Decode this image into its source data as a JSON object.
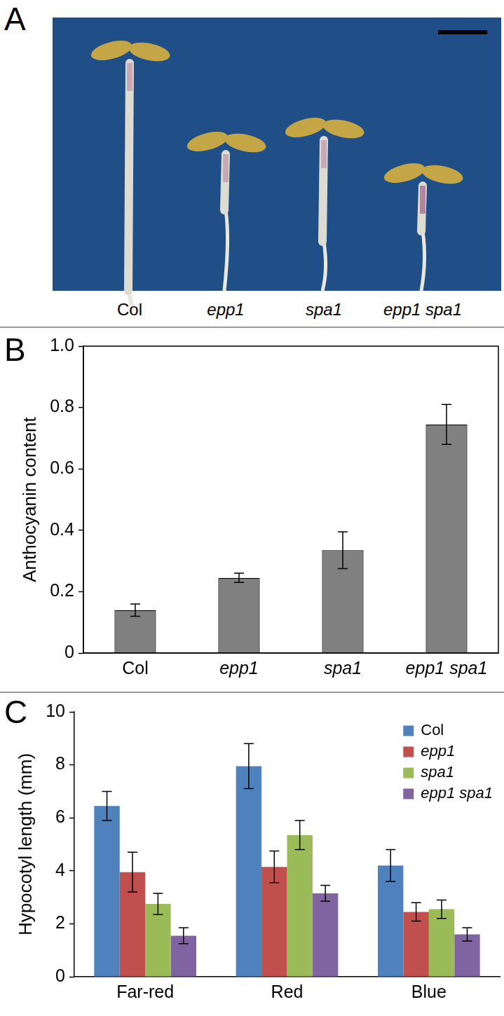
{
  "panel_a": {
    "panel_label": "A",
    "labels": [
      "Col",
      "epp1",
      "spa1",
      "epp1 spa1"
    ]
  },
  "chart_data": [
    {
      "panel_label": "B",
      "type": "bar",
      "categories": [
        "Col",
        "epp1",
        "spa1",
        "epp1 spa1"
      ],
      "values": [
        0.14,
        0.245,
        0.335,
        0.745
      ],
      "errors": [
        0.02,
        0.015,
        0.06,
        0.065
      ],
      "color": "#808080",
      "y_label": "Anthocyanin content",
      "ylim": [
        0,
        1
      ],
      "yticks": [
        0,
        0.2,
        0.4,
        0.6,
        0.8,
        {
          "value": 1,
          "label": "1.0"
        }
      ],
      "grid": false
    },
    {
      "panel_label": "C",
      "type": "bar",
      "categories": [
        "Far-red",
        "Red",
        "Blue"
      ],
      "series": [
        {
          "name": "Col",
          "color": "#4f81bd",
          "values": [
            6.45,
            7.95,
            4.2
          ],
          "errors": [
            0.55,
            0.85,
            0.6
          ]
        },
        {
          "name": "epp1",
          "color": "#c0504d",
          "values": [
            3.95,
            4.15,
            2.45
          ],
          "errors": [
            0.75,
            0.6,
            0.35
          ]
        },
        {
          "name": "spa1",
          "color": "#9bbb59",
          "values": [
            2.75,
            5.35,
            2.55
          ],
          "errors": [
            0.4,
            0.55,
            0.35
          ]
        },
        {
          "name": "epp1 spa1",
          "color": "#8064a2",
          "values": [
            1.55,
            3.15,
            1.6
          ],
          "errors": [
            0.3,
            0.3,
            0.25
          ]
        }
      ],
      "y_label": "Hypocotyl length (mm)",
      "ylim": [
        0,
        10
      ],
      "yticks": [
        0,
        2,
        4,
        6,
        8,
        10
      ],
      "grid": false,
      "legend": "upper right"
    }
  ]
}
